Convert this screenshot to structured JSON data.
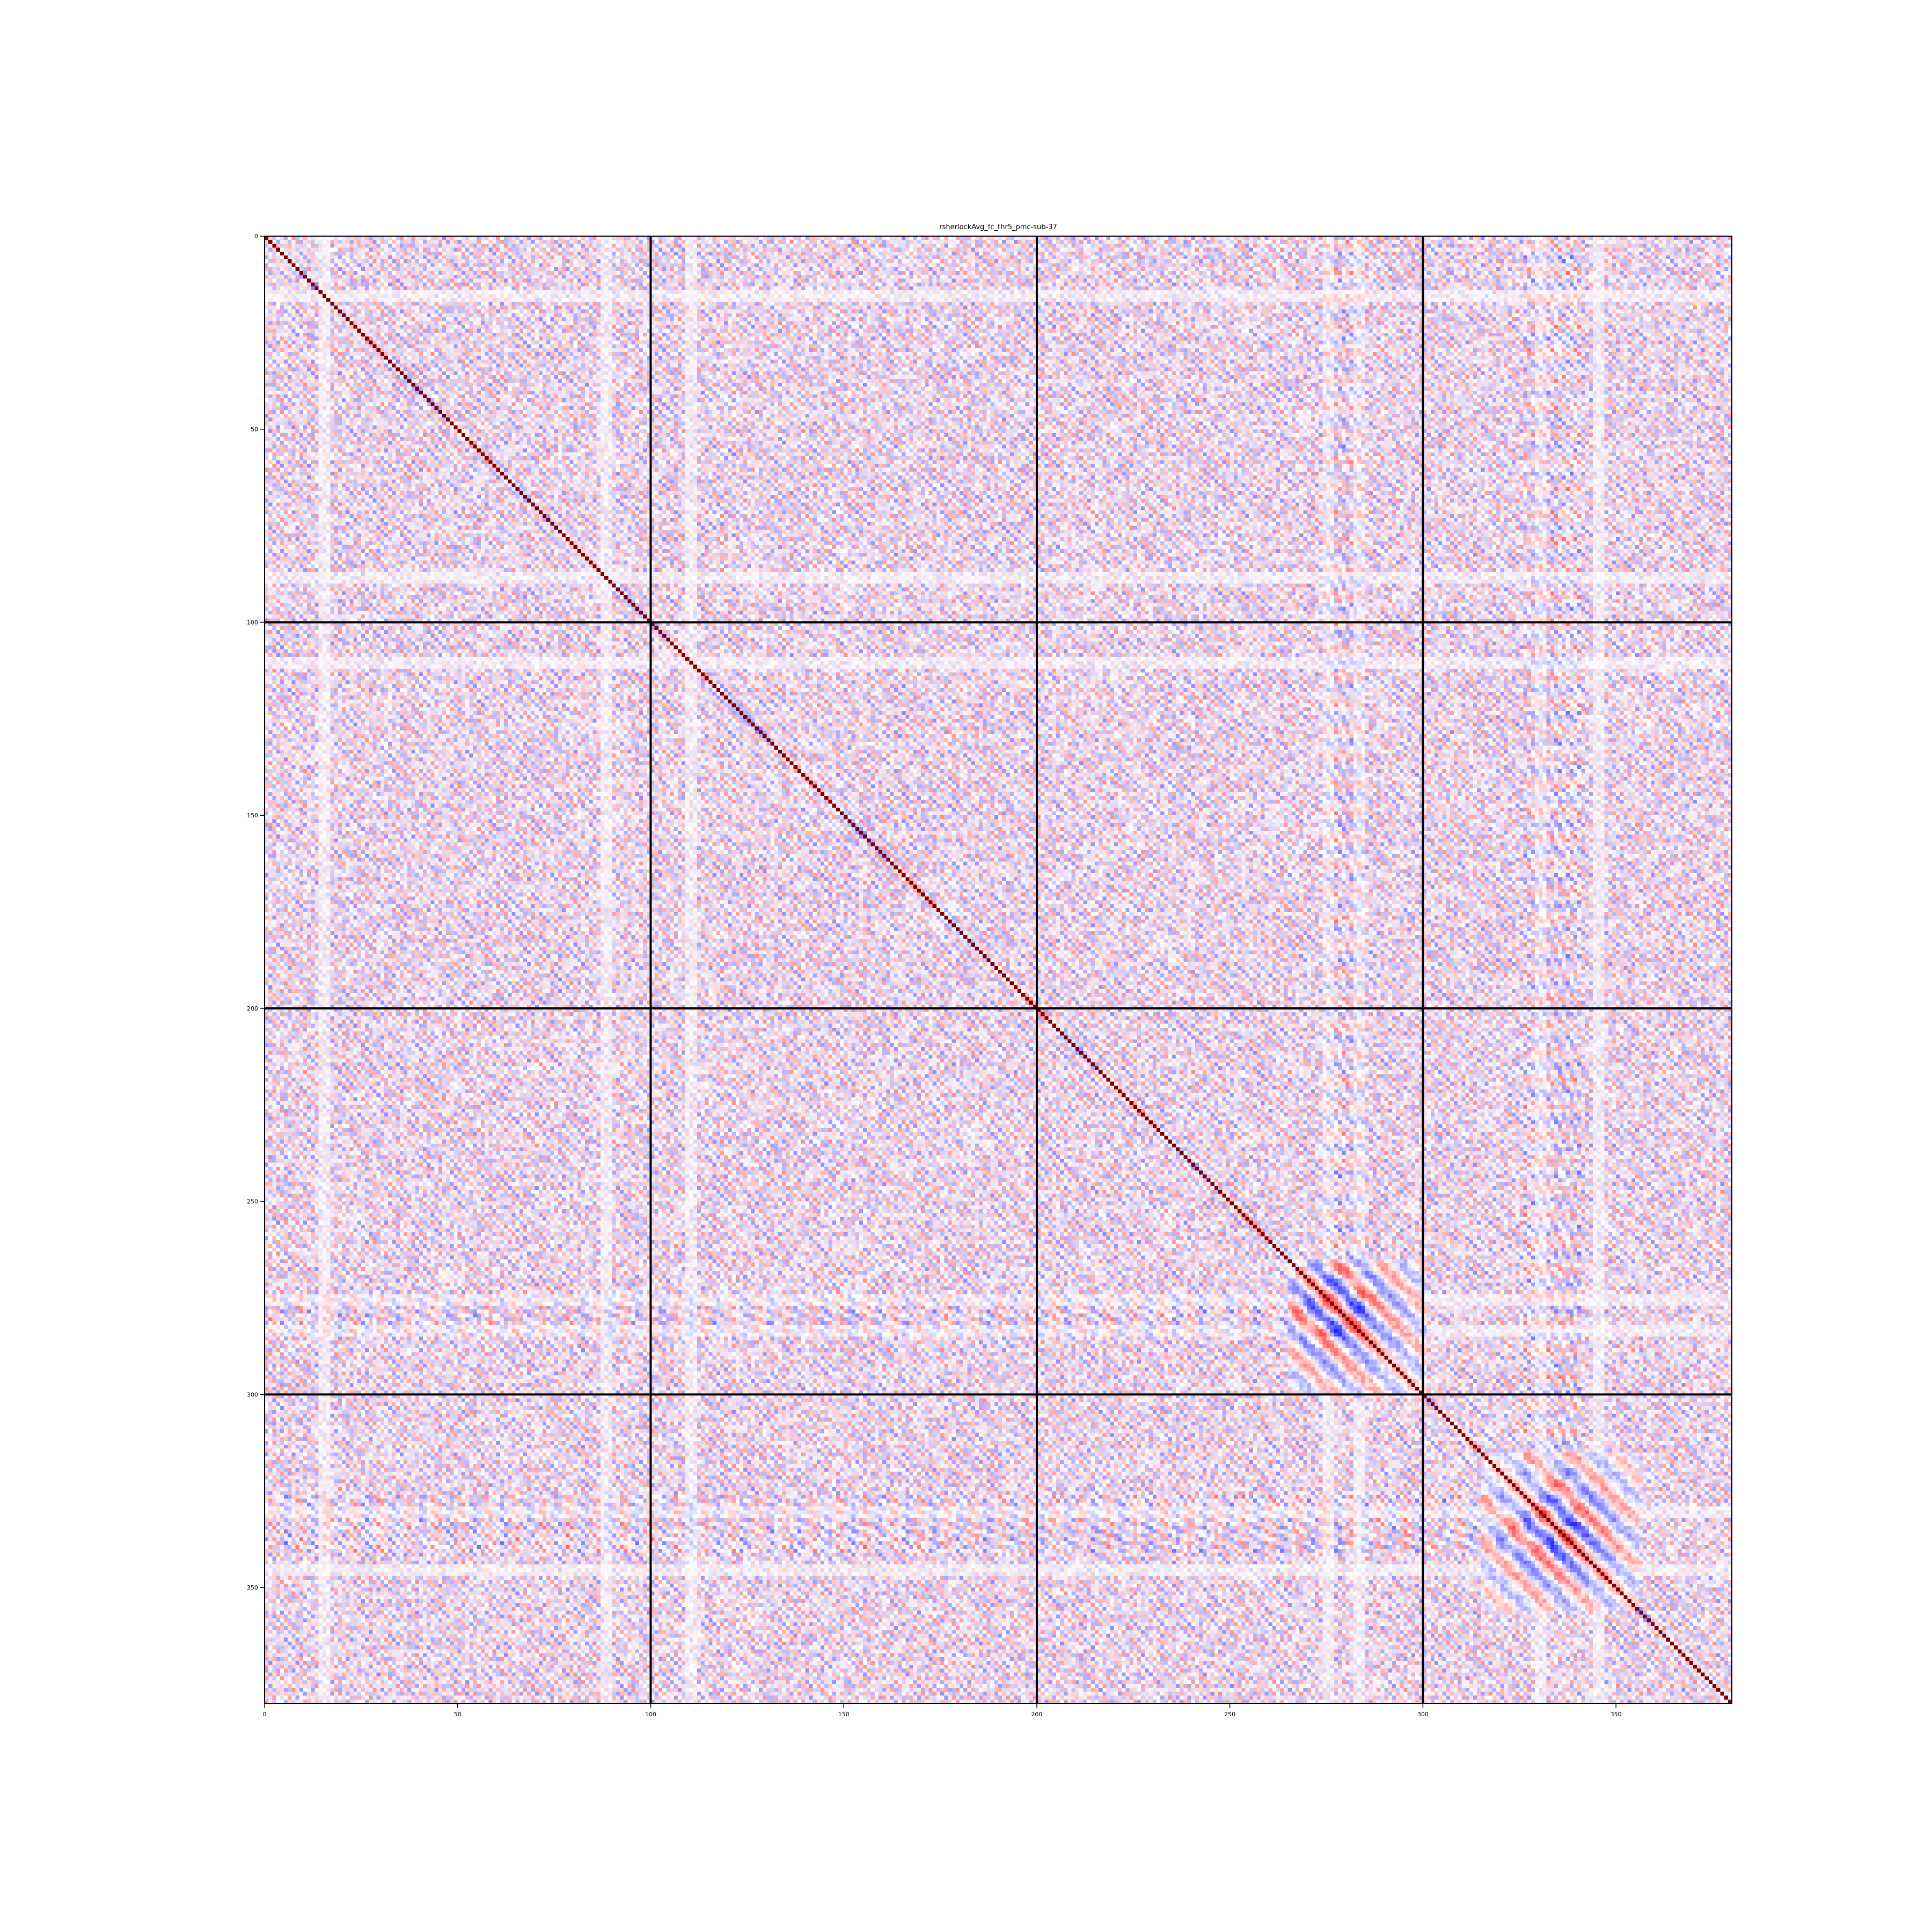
{
  "chart_data": {
    "type": "heatmap",
    "title": "rsherlockAvg_fc_thr5_pmc-sub-37",
    "xlabel": "",
    "ylabel": "",
    "n_rows": 380,
    "n_cols": 380,
    "xlim": [
      0,
      380
    ],
    "ylim": [
      380,
      0
    ],
    "x_ticks": [
      "0",
      "50",
      "100",
      "150",
      "200",
      "250",
      "300",
      "350"
    ],
    "y_ticks": [
      "0",
      "50",
      "100",
      "150",
      "200",
      "250",
      "300",
      "350"
    ],
    "colormap": "bwr",
    "value_range": [
      -1,
      1
    ],
    "diagonal_value": 1,
    "block_boundaries": [
      100,
      200,
      300
    ],
    "notable_clusters": [
      {
        "rows": [
          270,
          300
        ],
        "cols": [
          268,
          290
        ],
        "pattern": "strong positive/negative block"
      },
      {
        "rows": [
          315,
          355
        ],
        "cols": [
          315,
          350
        ],
        "pattern": "strong positive/negative block"
      }
    ],
    "colors": {
      "negative": "#3b3bff",
      "neutral": "#ffffff",
      "positive": "#ff2020",
      "diagonal": "#7f0000",
      "grid": "#000000"
    },
    "grid": false,
    "legend": "none"
  }
}
